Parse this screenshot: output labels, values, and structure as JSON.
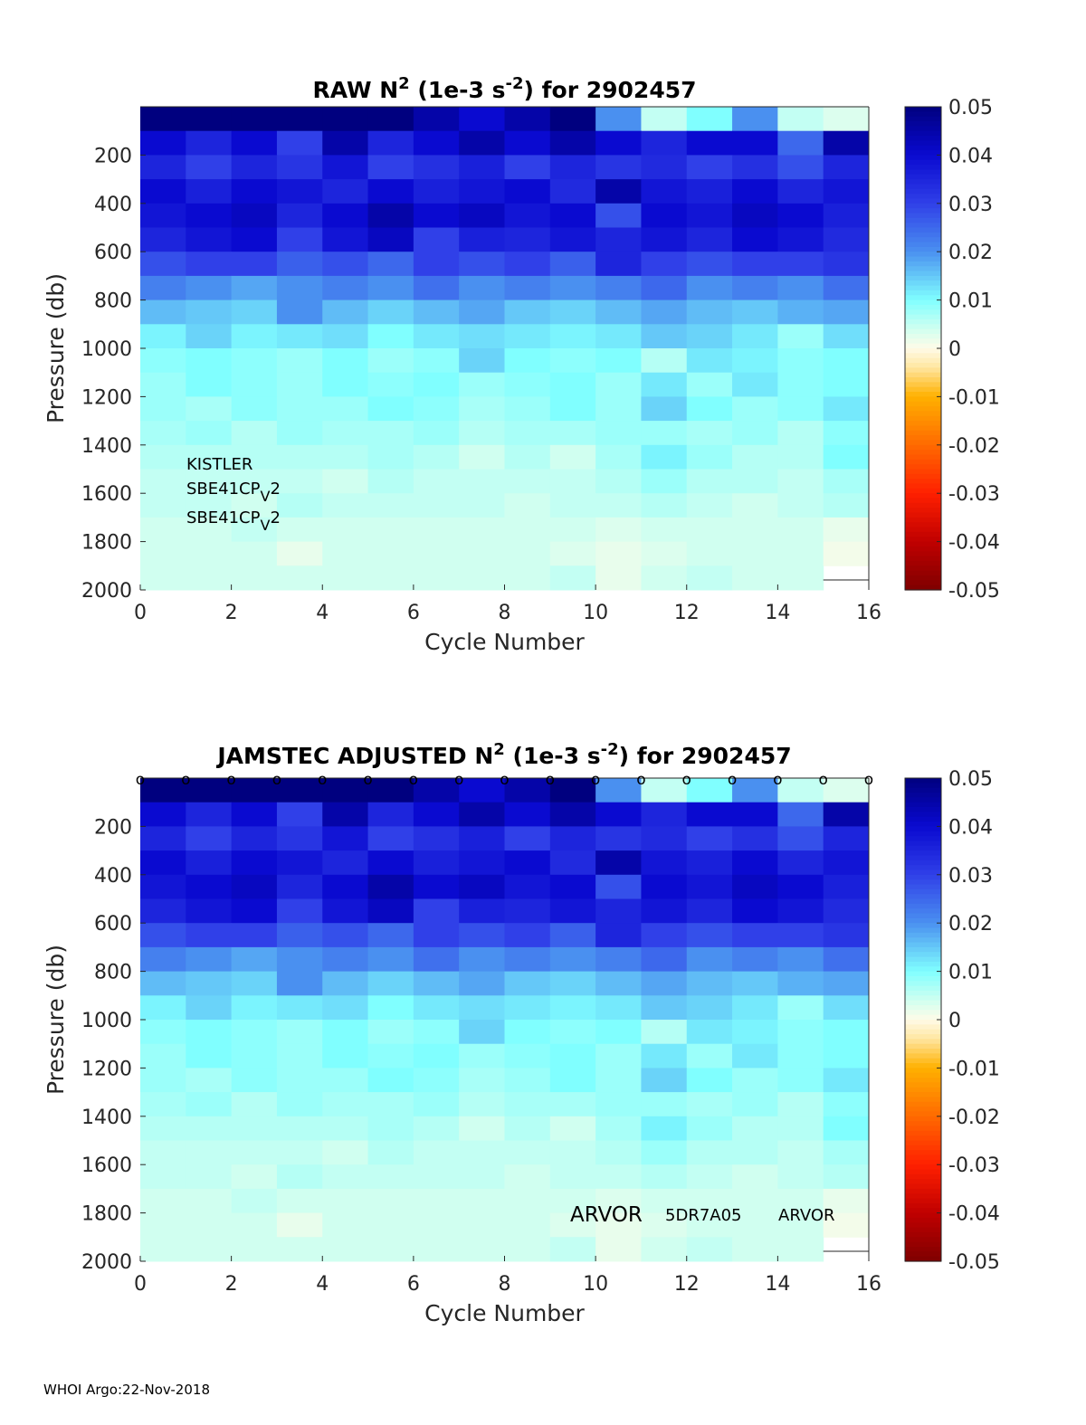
{
  "footer": "WHOI Argo:22-Nov-2018",
  "colors": {
    "colormap_stops": [
      [
        -0.05,
        "#7f0000"
      ],
      [
        -0.04,
        "#c00000"
      ],
      [
        -0.03,
        "#ff2000"
      ],
      [
        -0.02,
        "#ff6a00"
      ],
      [
        -0.01,
        "#ffb000"
      ],
      [
        -0.004,
        "#ffe6a0"
      ],
      [
        0,
        "#fffbe8"
      ],
      [
        0.004,
        "#d0fff0"
      ],
      [
        0.01,
        "#80ffff"
      ],
      [
        0.02,
        "#4a90f0"
      ],
      [
        0.03,
        "#3040e8"
      ],
      [
        0.04,
        "#0a0ad0"
      ],
      [
        0.05,
        "#00007f"
      ]
    ]
  },
  "chart_data": [
    {
      "type": "heatmap",
      "title": {
        "pre": "RAW N",
        "sup1": "2",
        "mid": " (1e-3 s",
        "sup2": "-2",
        "post": ") for 2902457"
      },
      "xlabel": "Cycle Number",
      "ylabel": "Pressure (db)",
      "xlim": [
        0,
        16
      ],
      "ylim": [
        0,
        2000
      ],
      "y_reversed": true,
      "xticks": [
        "0",
        "2",
        "4",
        "6",
        "8",
        "10",
        "12",
        "14",
        "16"
      ],
      "yticks": [
        "200",
        "400",
        "600",
        "800",
        "1000",
        "1200",
        "1400",
        "1600",
        "1800",
        "2000"
      ],
      "colorbar": {
        "range": [
          -0.05,
          0.05
        ],
        "ticks": [
          "0.05",
          "0.04",
          "0.03",
          "0.02",
          "0.01",
          "0",
          "-0.01",
          "-0.02",
          "-0.03",
          "-0.04",
          "-0.05"
        ]
      },
      "annotations": [
        {
          "text": "KISTLER"
        },
        {
          "text": "SBE41CP",
          "sub": "V",
          "tail": "2"
        },
        {
          "text": "SBE41CP",
          "sub": "V",
          "tail": "2"
        }
      ],
      "markers": [],
      "cycles": [
        0,
        1,
        2,
        3,
        4,
        5,
        6,
        7,
        8,
        9,
        10,
        11,
        12,
        13,
        14,
        15
      ],
      "pressure_bins": [
        0,
        100,
        200,
        300,
        400,
        500,
        600,
        700,
        800,
        900,
        1000,
        1100,
        1200,
        1300,
        1400,
        1500,
        1600,
        1700,
        1800,
        1900,
        2000
      ],
      "values": [
        [
          0.05,
          0.05,
          0.05,
          0.05,
          0.05,
          0.05,
          0.045,
          0.04,
          0.045,
          0.05,
          0.02,
          0.005,
          0.01,
          0.02,
          0.005,
          0.003
        ],
        [
          0.04,
          0.035,
          0.04,
          0.03,
          0.045,
          0.035,
          0.04,
          0.045,
          0.04,
          0.045,
          0.04,
          0.035,
          0.04,
          0.04,
          0.025,
          0.045
        ],
        [
          0.035,
          0.03,
          0.035,
          0.032,
          0.038,
          0.03,
          0.033,
          0.036,
          0.03,
          0.035,
          0.032,
          0.034,
          0.03,
          0.033,
          0.028,
          0.035
        ],
        [
          0.04,
          0.036,
          0.04,
          0.038,
          0.035,
          0.04,
          0.036,
          0.038,
          0.04,
          0.034,
          0.045,
          0.038,
          0.036,
          0.04,
          0.035,
          0.038
        ],
        [
          0.038,
          0.04,
          0.042,
          0.035,
          0.04,
          0.045,
          0.04,
          0.042,
          0.038,
          0.04,
          0.028,
          0.04,
          0.038,
          0.042,
          0.04,
          0.036
        ],
        [
          0.035,
          0.038,
          0.04,
          0.03,
          0.038,
          0.042,
          0.03,
          0.036,
          0.035,
          0.038,
          0.035,
          0.038,
          0.035,
          0.04,
          0.038,
          0.034
        ],
        [
          0.028,
          0.03,
          0.03,
          0.026,
          0.028,
          0.025,
          0.03,
          0.028,
          0.03,
          0.026,
          0.035,
          0.03,
          0.028,
          0.03,
          0.03,
          0.032
        ],
        [
          0.022,
          0.02,
          0.018,
          0.02,
          0.022,
          0.02,
          0.024,
          0.02,
          0.022,
          0.02,
          0.022,
          0.025,
          0.02,
          0.022,
          0.02,
          0.024
        ],
        [
          0.016,
          0.015,
          0.014,
          0.02,
          0.016,
          0.014,
          0.016,
          0.018,
          0.015,
          0.014,
          0.016,
          0.018,
          0.016,
          0.015,
          0.017,
          0.018
        ],
        [
          0.011,
          0.014,
          0.011,
          0.012,
          0.013,
          0.01,
          0.012,
          0.013,
          0.012,
          0.011,
          0.012,
          0.015,
          0.014,
          0.012,
          0.008,
          0.013
        ],
        [
          0.009,
          0.01,
          0.009,
          0.008,
          0.01,
          0.008,
          0.009,
          0.014,
          0.01,
          0.009,
          0.01,
          0.006,
          0.012,
          0.011,
          0.009,
          0.01
        ],
        [
          0.008,
          0.01,
          0.009,
          0.008,
          0.01,
          0.009,
          0.01,
          0.008,
          0.009,
          0.01,
          0.008,
          0.012,
          0.008,
          0.012,
          0.009,
          0.01
        ],
        [
          0.008,
          0.007,
          0.009,
          0.008,
          0.008,
          0.01,
          0.009,
          0.007,
          0.008,
          0.01,
          0.008,
          0.014,
          0.01,
          0.008,
          0.009,
          0.012
        ],
        [
          0.007,
          0.008,
          0.006,
          0.008,
          0.007,
          0.007,
          0.008,
          0.006,
          0.007,
          0.007,
          0.008,
          0.008,
          0.007,
          0.008,
          0.006,
          0.009
        ],
        [
          0.006,
          0.006,
          0.006,
          0.006,
          0.006,
          0.007,
          0.006,
          0.004,
          0.006,
          0.004,
          0.007,
          0.011,
          0.008,
          0.006,
          0.006,
          0.01
        ],
        [
          0.005,
          0.005,
          0.005,
          0.005,
          0.004,
          0.006,
          0.005,
          0.005,
          0.005,
          0.005,
          0.006,
          0.008,
          0.006,
          0.006,
          0.005,
          0.007
        ],
        [
          0.005,
          0.005,
          0.004,
          0.006,
          0.005,
          0.005,
          0.005,
          0.005,
          0.004,
          0.005,
          0.005,
          0.006,
          0.005,
          0.004,
          0.005,
          0.006
        ],
        [
          0.004,
          0.004,
          0.005,
          0.004,
          0.004,
          0.004,
          0.004,
          0.004,
          0.004,
          0.004,
          0.003,
          0.004,
          0.004,
          0.004,
          0.004,
          0.002
        ],
        [
          0.004,
          0.004,
          0.004,
          0.002,
          0.004,
          0.004,
          0.004,
          0.004,
          0.004,
          0.003,
          0.002,
          0.003,
          0.004,
          0.004,
          0.004,
          0.001
        ],
        [
          0.004,
          0.004,
          0.004,
          0.004,
          0.004,
          0.004,
          0.004,
          0.004,
          0.004,
          0.005,
          0.002,
          0.004,
          0.005,
          0.004,
          0.004,
          null
        ]
      ]
    },
    {
      "type": "heatmap",
      "title": {
        "pre": "JAMSTEC  ADJUSTED N",
        "sup1": "2",
        "mid": " (1e-3 s",
        "sup2": "-2",
        "post": ") for 2902457"
      },
      "xlabel": "Cycle Number",
      "ylabel": "Pressure (db)",
      "xlim": [
        0,
        16
      ],
      "ylim": [
        0,
        2000
      ],
      "y_reversed": true,
      "xticks": [
        "0",
        "2",
        "4",
        "6",
        "8",
        "10",
        "12",
        "14",
        "16"
      ],
      "yticks": [
        "200",
        "400",
        "600",
        "800",
        "1000",
        "1200",
        "1400",
        "1600",
        "1800",
        "2000"
      ],
      "colorbar": {
        "range": [
          -0.05,
          0.05
        ],
        "ticks": [
          "0.05",
          "0.04",
          "0.03",
          "0.02",
          "0.01",
          "0",
          "-0.01",
          "-0.02",
          "-0.03",
          "-0.04",
          "-0.05"
        ]
      },
      "annotations": [
        {
          "text": "ARVOR"
        },
        {
          "text": "5DR7A05"
        },
        {
          "text": "ARVOR"
        }
      ],
      "markers": {
        "symbol": "o",
        "cycles": [
          0,
          1,
          2,
          3,
          4,
          5,
          6,
          7,
          8,
          9,
          10,
          11,
          12,
          13,
          14,
          15,
          16
        ],
        "pressure": 0
      },
      "cycles": [
        0,
        1,
        2,
        3,
        4,
        5,
        6,
        7,
        8,
        9,
        10,
        11,
        12,
        13,
        14,
        15
      ],
      "pressure_bins": [
        0,
        100,
        200,
        300,
        400,
        500,
        600,
        700,
        800,
        900,
        1000,
        1100,
        1200,
        1300,
        1400,
        1500,
        1600,
        1700,
        1800,
        1900,
        2000
      ],
      "values": [
        [
          0.05,
          0.05,
          0.05,
          0.05,
          0.05,
          0.05,
          0.045,
          0.04,
          0.045,
          0.05,
          0.02,
          0.005,
          0.01,
          0.02,
          0.005,
          0.003
        ],
        [
          0.04,
          0.035,
          0.04,
          0.03,
          0.045,
          0.035,
          0.04,
          0.045,
          0.04,
          0.045,
          0.04,
          0.035,
          0.04,
          0.04,
          0.025,
          0.045
        ],
        [
          0.035,
          0.03,
          0.035,
          0.032,
          0.038,
          0.03,
          0.033,
          0.036,
          0.03,
          0.035,
          0.032,
          0.034,
          0.03,
          0.033,
          0.028,
          0.035
        ],
        [
          0.04,
          0.036,
          0.04,
          0.038,
          0.035,
          0.04,
          0.036,
          0.038,
          0.04,
          0.034,
          0.045,
          0.038,
          0.036,
          0.04,
          0.035,
          0.038
        ],
        [
          0.038,
          0.04,
          0.042,
          0.035,
          0.04,
          0.045,
          0.04,
          0.042,
          0.038,
          0.04,
          0.028,
          0.04,
          0.038,
          0.042,
          0.04,
          0.036
        ],
        [
          0.035,
          0.038,
          0.04,
          0.03,
          0.038,
          0.042,
          0.03,
          0.036,
          0.035,
          0.038,
          0.035,
          0.038,
          0.035,
          0.04,
          0.038,
          0.034
        ],
        [
          0.028,
          0.03,
          0.03,
          0.026,
          0.028,
          0.025,
          0.03,
          0.028,
          0.03,
          0.026,
          0.035,
          0.03,
          0.028,
          0.03,
          0.03,
          0.032
        ],
        [
          0.022,
          0.02,
          0.018,
          0.02,
          0.022,
          0.02,
          0.024,
          0.02,
          0.022,
          0.02,
          0.022,
          0.025,
          0.02,
          0.022,
          0.02,
          0.024
        ],
        [
          0.016,
          0.015,
          0.014,
          0.02,
          0.016,
          0.014,
          0.016,
          0.018,
          0.015,
          0.014,
          0.016,
          0.018,
          0.016,
          0.015,
          0.017,
          0.018
        ],
        [
          0.011,
          0.014,
          0.011,
          0.012,
          0.013,
          0.01,
          0.012,
          0.013,
          0.012,
          0.011,
          0.012,
          0.015,
          0.014,
          0.012,
          0.008,
          0.013
        ],
        [
          0.009,
          0.01,
          0.009,
          0.008,
          0.01,
          0.008,
          0.009,
          0.014,
          0.01,
          0.009,
          0.01,
          0.006,
          0.012,
          0.011,
          0.009,
          0.01
        ],
        [
          0.008,
          0.01,
          0.009,
          0.008,
          0.01,
          0.009,
          0.01,
          0.008,
          0.009,
          0.01,
          0.008,
          0.012,
          0.008,
          0.012,
          0.009,
          0.01
        ],
        [
          0.008,
          0.007,
          0.009,
          0.008,
          0.008,
          0.01,
          0.009,
          0.007,
          0.008,
          0.01,
          0.008,
          0.014,
          0.01,
          0.008,
          0.009,
          0.012
        ],
        [
          0.007,
          0.008,
          0.006,
          0.008,
          0.007,
          0.007,
          0.008,
          0.006,
          0.007,
          0.007,
          0.008,
          0.008,
          0.007,
          0.008,
          0.006,
          0.009
        ],
        [
          0.006,
          0.006,
          0.006,
          0.006,
          0.006,
          0.007,
          0.006,
          0.004,
          0.006,
          0.004,
          0.007,
          0.011,
          0.008,
          0.006,
          0.006,
          0.01
        ],
        [
          0.005,
          0.005,
          0.005,
          0.005,
          0.004,
          0.006,
          0.005,
          0.005,
          0.005,
          0.005,
          0.006,
          0.008,
          0.006,
          0.006,
          0.005,
          0.007
        ],
        [
          0.005,
          0.005,
          0.004,
          0.006,
          0.005,
          0.005,
          0.005,
          0.005,
          0.004,
          0.005,
          0.005,
          0.006,
          0.005,
          0.004,
          0.005,
          0.006
        ],
        [
          0.004,
          0.004,
          0.005,
          0.004,
          0.004,
          0.004,
          0.004,
          0.004,
          0.004,
          0.004,
          0.003,
          0.004,
          0.004,
          0.004,
          0.004,
          0.002
        ],
        [
          0.004,
          0.004,
          0.004,
          0.002,
          0.004,
          0.004,
          0.004,
          0.004,
          0.004,
          0.003,
          0.002,
          0.003,
          0.004,
          0.004,
          0.004,
          0.001
        ],
        [
          0.004,
          0.004,
          0.004,
          0.004,
          0.004,
          0.004,
          0.004,
          0.004,
          0.004,
          0.005,
          0.002,
          0.004,
          0.005,
          0.004,
          0.004,
          null
        ]
      ]
    }
  ]
}
